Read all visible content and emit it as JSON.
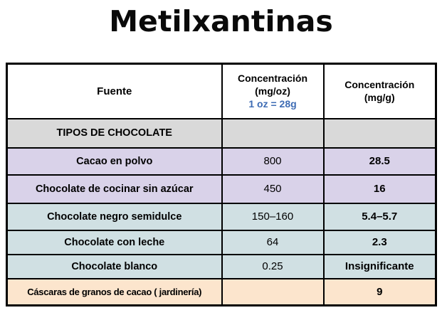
{
  "title": "Metilxantinas",
  "table": {
    "headers": {
      "col1": "Fuente",
      "col2_line1": "Concentración",
      "col2_line2": "(mg/oz)",
      "col2_note": "1 oz = 28g",
      "col3_line1": "Concentración",
      "col3_line2": "(mg/g)"
    },
    "section_label": "TIPOS DE CHOCOLATE",
    "rows": [
      {
        "fuente": "Cacao en polvo",
        "mg_oz": "800",
        "mg_g": "28.5"
      },
      {
        "fuente": "Chocolate de cocinar sin azúcar",
        "mg_oz": "450",
        "mg_g": "16"
      },
      {
        "fuente": "Chocolate negro semidulce",
        "mg_oz": "150–160",
        "mg_g": "5.4–5.7"
      },
      {
        "fuente": "Chocolate con leche",
        "mg_oz": "64",
        "mg_g": "2.3"
      },
      {
        "fuente": "Chocolate blanco",
        "mg_oz": "0.25",
        "mg_g": "Insignificante"
      },
      {
        "fuente": "Cáscaras de granos de cacao ( jardinería)",
        "mg_oz": "",
        "mg_g": "9"
      }
    ],
    "colors": {
      "section_bg": "#d9d9d9",
      "lavender": "#d9d2e9",
      "teal": "#d0e0e3",
      "peach": "#fce5cd",
      "note_blue": "#3e6cb4"
    }
  }
}
